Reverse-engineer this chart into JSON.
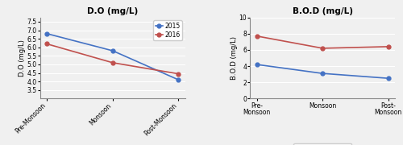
{
  "seasons_left": [
    "Pre-Monsoon",
    "Monsoon",
    "Post-Monsoon"
  ],
  "seasons_right": [
    "Pre-\nMonsoon",
    "Monsoon",
    "Post-\nMonsoon"
  ],
  "do_2015": [
    6.8,
    5.8,
    4.1
  ],
  "do_2016": [
    6.2,
    5.1,
    4.45
  ],
  "bod_2015": [
    4.2,
    3.1,
    2.5
  ],
  "bod_2016": [
    7.7,
    6.2,
    6.4
  ],
  "do_title": "D.O (mg/L)",
  "bod_title": "B.O.D (mg/L)",
  "do_ylabel": "D.O (mg/L)",
  "bod_ylabel": "B.O.D (mg/L)",
  "do_ylim": [
    3.0,
    7.75
  ],
  "do_yticks": [
    3.5,
    4.0,
    4.5,
    5.0,
    5.5,
    6.0,
    6.5,
    7.0,
    7.5
  ],
  "bod_ylim": [
    0,
    10
  ],
  "bod_yticks": [
    0,
    2,
    4,
    6,
    8,
    10
  ],
  "color_2015": "#4472c4",
  "color_2016": "#c0504d",
  "marker": "o",
  "legend_2015": "2015",
  "legend_2016": "2016",
  "background_color": "#f0f0f0",
  "plot_bg": "#f0f0f0"
}
